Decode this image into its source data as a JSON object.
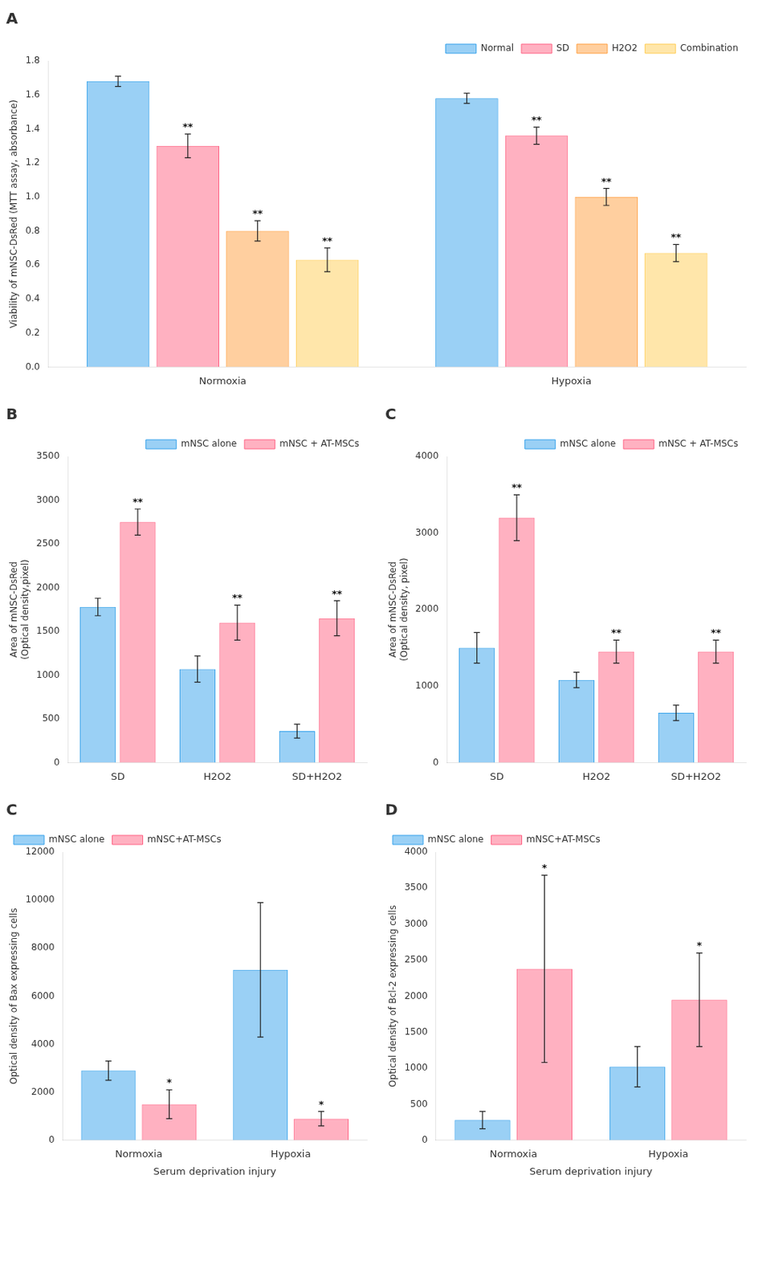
{
  "chart_data": [
    {
      "type": "bar",
      "title": "A",
      "categories": [
        "Normoxia",
        "Hypoxia"
      ],
      "series": [
        {
          "name": "Normal",
          "values": [
            1.68,
            1.58
          ],
          "errors": [
            0.03,
            0.03
          ]
        },
        {
          "name": "SD",
          "values": [
            1.3,
            1.36
          ],
          "errors": [
            0.07,
            0.05
          ],
          "annotations": [
            "**",
            "**"
          ]
        },
        {
          "name": "H2O2",
          "values": [
            0.8,
            1.0
          ],
          "errors": [
            0.06,
            0.05
          ],
          "annotations": [
            "**",
            "**"
          ]
        },
        {
          "name": "Combination",
          "values": [
            0.63,
            0.67
          ],
          "errors": [
            0.07,
            0.05
          ],
          "annotations": [
            "**",
            "**"
          ]
        }
      ],
      "ylabel": "Viability of mNSC-DsRed (MTT assay, absorbance)",
      "ylim": [
        0,
        1.8
      ],
      "yticks": [
        {
          "value": 0,
          "label": "0.0"
        },
        0.2,
        0.4,
        0.6,
        0.8,
        {
          "value": 1.0,
          "label": "1.0"
        },
        1.2,
        1.4,
        1.6,
        1.8
      ],
      "grid": false,
      "legend": "upper right"
    },
    {
      "type": "bar",
      "title": "B",
      "categories": [
        "SD",
        "H2O2",
        "SD+H2O2"
      ],
      "series": [
        {
          "name": "mNSC alone",
          "values": [
            1780,
            1070,
            360
          ],
          "errors": [
            100,
            150,
            80
          ]
        },
        {
          "name": "mNSC + AT-MSCs",
          "values": [
            2750,
            1600,
            1650
          ],
          "errors": [
            150,
            200,
            200
          ],
          "annotations": [
            "**",
            "**",
            "**"
          ]
        }
      ],
      "ylabel": "Area of mNSC-DsRed\n(Optical density,pixel)",
      "ylim": [
        0,
        3500
      ],
      "yticks": [
        0,
        500,
        1000,
        1500,
        2000,
        2500,
        3000,
        3500
      ],
      "grid": false,
      "legend": "upper right"
    },
    {
      "type": "bar",
      "title": "C",
      "categories": [
        "SD",
        "H2O2",
        "SD+H2O2"
      ],
      "series": [
        {
          "name": "mNSC alone",
          "values": [
            1500,
            1080,
            650
          ],
          "errors": [
            200,
            100,
            100
          ]
        },
        {
          "name": "mNSC + AT-MSCs",
          "values": [
            3200,
            1450,
            1450
          ],
          "errors": [
            300,
            150,
            150
          ],
          "annotations": [
            "**",
            "**",
            "**"
          ]
        }
      ],
      "ylabel": "Area of mNSC-DsRed\n(Optical density, pixel)",
      "ylim": [
        0,
        4000
      ],
      "yticks": [
        0,
        1000,
        2000,
        3000,
        4000
      ],
      "grid": false,
      "legend": "upper right"
    },
    {
      "type": "bar",
      "title": "C",
      "categories": [
        "Normoxia",
        "Hypoxia"
      ],
      "series": [
        {
          "name": "mNSC alone",
          "values": [
            2900,
            7100
          ],
          "errors": [
            400,
            2800
          ]
        },
        {
          "name": "mNSC+AT-MSCs",
          "values": [
            1500,
            900
          ],
          "errors": [
            600,
            300
          ],
          "annotations": [
            "*",
            "*"
          ]
        }
      ],
      "ylabel": "Optical density of Bax expressing cells",
      "xlabel": "Serum deprivation injury",
      "ylim": [
        0,
        12000
      ],
      "yticks": [
        0,
        2000,
        4000,
        6000,
        8000,
        10000,
        12000
      ],
      "grid": false,
      "legend": "upper left"
    },
    {
      "type": "bar",
      "title": "D",
      "categories": [
        "Normoxia",
        "Hypoxia"
      ],
      "series": [
        {
          "name": "mNSC alone",
          "values": [
            280,
            1020
          ],
          "errors": [
            120,
            280
          ]
        },
        {
          "name": "mNSC+AT-MSCs",
          "values": [
            2380,
            1950
          ],
          "errors": [
            1300,
            650
          ],
          "annotations": [
            "*",
            "*"
          ]
        }
      ],
      "ylabel": "Optical density of Bcl-2 expressing cells",
      "xlabel": "Serum deprivation injury",
      "ylim": [
        0,
        4000
      ],
      "yticks": [
        0,
        500,
        1000,
        1500,
        2000,
        2500,
        3000,
        3500,
        4000
      ],
      "grid": false,
      "legend": "upper left"
    }
  ]
}
